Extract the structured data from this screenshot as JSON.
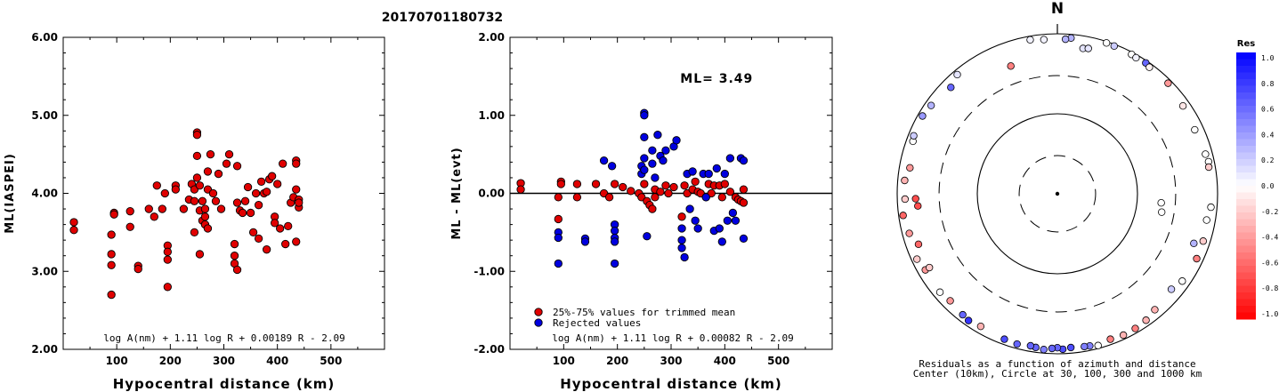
{
  "title": "20170701180732",
  "chart_data": [
    {
      "type": "scatter",
      "panel": "left",
      "ylabel": "ML(IASPEI)",
      "xlabel": "Hypocentral distance (km)",
      "xlim": [
        0,
        600
      ],
      "ylim": [
        2.0,
        6.0
      ],
      "xticks": [
        "100",
        "200",
        "300",
        "400",
        "500"
      ],
      "yticks": [
        "2.00",
        "3.00",
        "4.00",
        "5.00",
        "6.00"
      ],
      "formula": "log A(nm) + 1.11 log R + 0.00189 R - 2.09",
      "series": [
        {
          "color": "#e00000",
          "points": [
            [
              20,
              3.63
            ],
            [
              20,
              3.53
            ],
            [
              90,
              3.47
            ],
            [
              90,
              3.22
            ],
            [
              90,
              3.08
            ],
            [
              90,
              2.7
            ],
            [
              95,
              3.75
            ],
            [
              95,
              3.73
            ],
            [
              125,
              3.77
            ],
            [
              125,
              3.57
            ],
            [
              140,
              3.07
            ],
            [
              140,
              3.03
            ],
            [
              160,
              3.8
            ],
            [
              170,
              3.7
            ],
            [
              175,
              4.1
            ],
            [
              185,
              3.8
            ],
            [
              190,
              4.0
            ],
            [
              195,
              3.33
            ],
            [
              195,
              3.25
            ],
            [
              195,
              3.15
            ],
            [
              195,
              2.8
            ],
            [
              210,
              4.1
            ],
            [
              210,
              4.05
            ],
            [
              225,
              3.8
            ],
            [
              235,
              3.92
            ],
            [
              240,
              4.12
            ],
            [
              245,
              4.05
            ],
            [
              245,
              3.9
            ],
            [
              245,
              3.5
            ],
            [
              250,
              4.78
            ],
            [
              250,
              4.75
            ],
            [
              250,
              4.48
            ],
            [
              250,
              4.2
            ],
            [
              255,
              3.78
            ],
            [
              255,
              3.22
            ],
            [
              255,
              4.1
            ],
            [
              260,
              3.9
            ],
            [
              260,
              3.65
            ],
            [
              265,
              3.8
            ],
            [
              265,
              3.6
            ],
            [
              265,
              3.7
            ],
            [
              270,
              4.28
            ],
            [
              270,
              4.05
            ],
            [
              270,
              3.55
            ],
            [
              275,
              4.5
            ],
            [
              280,
              4.0
            ],
            [
              285,
              3.9
            ],
            [
              290,
              4.25
            ],
            [
              295,
              3.8
            ],
            [
              305,
              4.38
            ],
            [
              310,
              4.5
            ],
            [
              320,
              3.35
            ],
            [
              320,
              3.2
            ],
            [
              320,
              3.1
            ],
            [
              325,
              4.35
            ],
            [
              325,
              3.88
            ],
            [
              325,
              3.02
            ],
            [
              330,
              3.78
            ],
            [
              335,
              3.75
            ],
            [
              340,
              3.9
            ],
            [
              345,
              4.08
            ],
            [
              350,
              3.75
            ],
            [
              355,
              3.5
            ],
            [
              360,
              4.0
            ],
            [
              365,
              3.42
            ],
            [
              365,
              3.85
            ],
            [
              370,
              4.15
            ],
            [
              375,
              4.0
            ],
            [
              380,
              4.02
            ],
            [
              380,
              3.28
            ],
            [
              385,
              4.18
            ],
            [
              390,
              4.22
            ],
            [
              395,
              3.7
            ],
            [
              395,
              3.62
            ],
            [
              400,
              4.12
            ],
            [
              405,
              3.55
            ],
            [
              410,
              4.38
            ],
            [
              415,
              3.35
            ],
            [
              420,
              3.58
            ],
            [
              425,
              3.88
            ],
            [
              430,
              3.95
            ],
            [
              435,
              4.42
            ],
            [
              435,
              4.38
            ],
            [
              435,
              4.05
            ],
            [
              435,
              3.38
            ],
            [
              440,
              3.92
            ],
            [
              440,
              3.82
            ],
            [
              440,
              3.88
            ]
          ]
        }
      ]
    },
    {
      "type": "scatter",
      "panel": "middle",
      "ylabel": "ML - ML(evt)",
      "xlabel": "Hypocentral distance (km)",
      "xlim": [
        0,
        600
      ],
      "ylim": [
        -2.0,
        2.0
      ],
      "xticks": [
        "100",
        "200",
        "300",
        "400",
        "500"
      ],
      "yticks": [
        "-2.00",
        "-1.00",
        "0.00",
        "1.00",
        "2.00"
      ],
      "annotation": "ML= 3.49",
      "formula": "log A(nm) + 1.11 log R + 0.00082 R - 2.09",
      "legend": [
        "25%-75% values for trimmed mean",
        "Rejected values"
      ],
      "series": [
        {
          "name": "25%-75% values for trimmed mean",
          "color": "#e00000",
          "points": [
            [
              20,
              0.13
            ],
            [
              20,
              0.05
            ],
            [
              90,
              -0.05
            ],
            [
              90,
              -0.33
            ],
            [
              95,
              0.15
            ],
            [
              95,
              0.12
            ],
            [
              125,
              0.12
            ],
            [
              125,
              -0.05
            ],
            [
              160,
              0.12
            ],
            [
              175,
              0.0
            ],
            [
              185,
              -0.05
            ],
            [
              195,
              0.12
            ],
            [
              210,
              0.08
            ],
            [
              225,
              0.03
            ],
            [
              240,
              0.0
            ],
            [
              245,
              -0.05
            ],
            [
              250,
              0.12
            ],
            [
              255,
              -0.1
            ],
            [
              260,
              -0.15
            ],
            [
              265,
              -0.2
            ],
            [
              270,
              0.05
            ],
            [
              270,
              -0.05
            ],
            [
              280,
              0.02
            ],
            [
              290,
              0.1
            ],
            [
              295,
              0.0
            ],
            [
              305,
              0.08
            ],
            [
              320,
              -0.3
            ],
            [
              325,
              0.1
            ],
            [
              330,
              0.0
            ],
            [
              340,
              0.05
            ],
            [
              345,
              0.15
            ],
            [
              350,
              0.02
            ],
            [
              355,
              0.0
            ],
            [
              365,
              -0.05
            ],
            [
              370,
              0.12
            ],
            [
              375,
              0.0
            ],
            [
              380,
              0.1
            ],
            [
              390,
              0.1
            ],
            [
              395,
              -0.05
            ],
            [
              400,
              0.12
            ],
            [
              410,
              0.02
            ],
            [
              420,
              -0.05
            ],
            [
              425,
              -0.08
            ],
            [
              430,
              -0.1
            ],
            [
              435,
              0.05
            ],
            [
              435,
              -0.12
            ]
          ]
        },
        {
          "name": "Rejected values",
          "color": "#0000e0",
          "points": [
            [
              90,
              -0.5
            ],
            [
              90,
              -0.57
            ],
            [
              90,
              -0.9
            ],
            [
              140,
              -0.58
            ],
            [
              140,
              -0.62
            ],
            [
              175,
              0.42
            ],
            [
              190,
              0.35
            ],
            [
              195,
              -0.4
            ],
            [
              195,
              -0.48
            ],
            [
              195,
              -0.57
            ],
            [
              195,
              -0.62
            ],
            [
              195,
              -0.9
            ],
            [
              245,
              0.35
            ],
            [
              245,
              0.25
            ],
            [
              250,
              1.03
            ],
            [
              250,
              1.0
            ],
            [
              250,
              0.72
            ],
            [
              250,
              0.45
            ],
            [
              250,
              0.3
            ],
            [
              255,
              -0.55
            ],
            [
              265,
              0.55
            ],
            [
              265,
              0.38
            ],
            [
              270,
              0.2
            ],
            [
              275,
              0.75
            ],
            [
              280,
              0.48
            ],
            [
              285,
              0.42
            ],
            [
              290,
              0.55
            ],
            [
              305,
              0.6
            ],
            [
              310,
              0.68
            ],
            [
              320,
              -0.45
            ],
            [
              320,
              -0.6
            ],
            [
              320,
              -0.7
            ],
            [
              325,
              -0.82
            ],
            [
              330,
              0.25
            ],
            [
              335,
              -0.2
            ],
            [
              340,
              0.28
            ],
            [
              345,
              -0.35
            ],
            [
              350,
              -0.45
            ],
            [
              360,
              0.25
            ],
            [
              365,
              -0.05
            ],
            [
              370,
              0.25
            ],
            [
              380,
              -0.48
            ],
            [
              385,
              0.32
            ],
            [
              390,
              -0.45
            ],
            [
              395,
              -0.62
            ],
            [
              400,
              0.25
            ],
            [
              405,
              -0.35
            ],
            [
              410,
              0.45
            ],
            [
              415,
              -0.25
            ],
            [
              420,
              -0.35
            ],
            [
              430,
              0.45
            ],
            [
              435,
              -0.58
            ],
            [
              435,
              0.42
            ]
          ]
        }
      ]
    },
    {
      "type": "polar-scatter",
      "panel": "right",
      "north_label": "N",
      "caption_line1": "Residuals as a function of azimuth and distance",
      "caption_line2": "Center (10km), Circle at 30, 100, 300 and 1000 km",
      "colorbar_title": "Res",
      "colorbar_ticks": [
        "1.0",
        "0.8",
        "0.6",
        "0.4",
        "0.2",
        "0.0",
        "-0.2",
        "-0.4",
        "-0.6",
        "-0.8",
        "-1.0"
      ],
      "points_note": "azimuth in degrees clockwise from north, distance in km, residual value",
      "points": [
        [
          350,
          900,
          0.05
        ],
        [
          355,
          860,
          0.05
        ],
        [
          5,
          900,
          0.3
        ],
        [
          3,
          860,
          0.3
        ],
        [
          10,
          700,
          0.1
        ],
        [
          12,
          720,
          0.1
        ],
        [
          18,
          960,
          0.0
        ],
        [
          21,
          950,
          0.2
        ],
        [
          28,
          940,
          0.0
        ],
        [
          30,
          920,
          0.05
        ],
        [
          34,
          940,
          0.6
        ],
        [
          36,
          900,
          -0.05
        ],
        [
          45,
          900,
          -0.4
        ],
        [
          55,
          820,
          -0.1
        ],
        [
          65,
          780,
          0.0
        ],
        [
          75,
          820,
          0.0
        ],
        [
          78,
          850,
          0.0
        ],
        [
          80,
          830,
          -0.2
        ],
        [
          95,
          840,
          0.0
        ],
        [
          100,
          780,
          0.0
        ],
        [
          108,
          820,
          -0.2
        ],
        [
          115,
          830,
          -0.5
        ],
        [
          125,
          800,
          0.0
        ],
        [
          130,
          720,
          0.2
        ],
        [
          140,
          780,
          -0.3
        ],
        [
          145,
          850,
          -0.3
        ],
        [
          150,
          880,
          -0.5
        ],
        [
          155,
          890,
          -0.3
        ],
        [
          160,
          860,
          -0.5
        ],
        [
          165,
          920,
          0.0
        ],
        [
          168,
          880,
          0.5
        ],
        [
          170,
          870,
          0.5
        ],
        [
          175,
          850,
          0.7
        ],
        [
          178,
          880,
          0.7
        ],
        [
          180,
          840,
          0.6
        ],
        [
          182,
          860,
          0.6
        ],
        [
          185,
          900,
          0.5
        ],
        [
          188,
          870,
          0.6
        ],
        [
          190,
          850,
          0.6
        ],
        [
          195,
          880,
          0.6
        ],
        [
          200,
          860,
          0.7
        ],
        [
          210,
          820,
          -0.3
        ],
        [
          218,
          830,
          0.6
        ],
        [
          215,
          860,
          0.8
        ],
        [
          225,
          780,
          -0.4
        ],
        [
          230,
          820,
          0.0
        ],
        [
          240,
          800,
          -0.4
        ],
        [
          245,
          860,
          -0.2
        ],
        [
          250,
          700,
          -0.6
        ],
        [
          255,
          820,
          -0.4
        ],
        [
          262,
          880,
          -0.6
        ],
        [
          268,
          800,
          -0.2
        ],
        [
          275,
          820,
          -0.3
        ],
        [
          280,
          740,
          -0.4
        ],
        [
          290,
          830,
          0.0
        ],
        [
          292,
          860,
          0.2
        ],
        [
          300,
          880,
          0.4
        ],
        [
          305,
          840,
          0.3
        ],
        [
          315,
          760,
          0.6
        ],
        [
          320,
          880,
          0.1
        ],
        [
          340,
          500,
          -0.5
        ],
        [
          95,
          200,
          0.0
        ],
        [
          100,
          210,
          0.0
        ],
        [
          110,
          650,
          0.3
        ],
        [
          265,
          560,
          -0.7
        ],
        [
          268,
          590,
          -0.7
        ],
        [
          240,
          700,
          -0.2
        ]
      ]
    }
  ]
}
